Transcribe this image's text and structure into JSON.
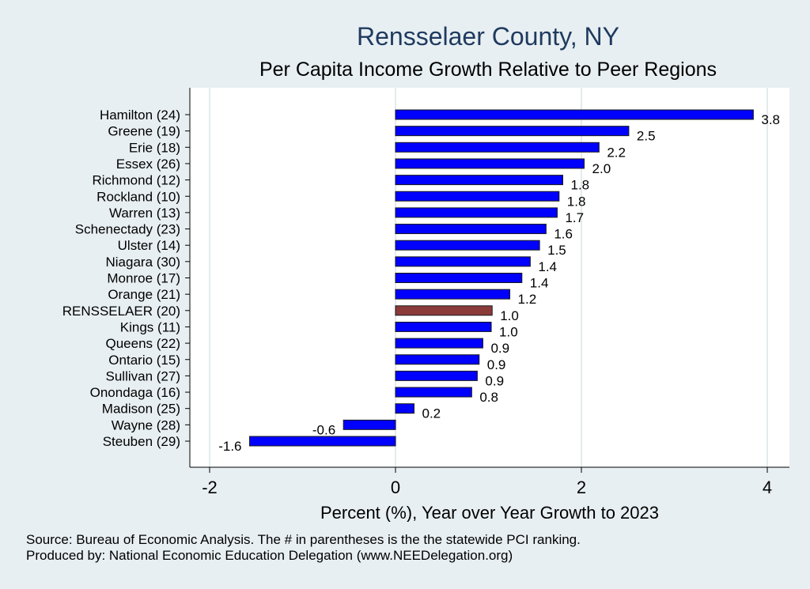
{
  "chart_data": {
    "type": "bar",
    "orientation": "horizontal",
    "title": "Rensselaer County, NY",
    "subtitle": "Per Capita Income Growth Relative to Peer Regions",
    "xlabel": "Percent (%), Year over Year Growth to 2023",
    "ylabel": "",
    "xlim": [
      -2.2,
      4.2
    ],
    "xticks": [
      "-2",
      "0",
      "2",
      "4"
    ],
    "grid": true,
    "categories": [
      "Hamilton (24)",
      "Greene (19)",
      "Erie (18)",
      "Essex (26)",
      "Richmond (12)",
      "Rockland (10)",
      "Warren (13)",
      "Schenectady (23)",
      "Ulster (14)",
      "Niagara (30)",
      "Monroe (17)",
      "Orange (21)",
      "RENSSELAER (20)",
      "Kings (11)",
      "Queens (22)",
      "Ontario (15)",
      "Sullivan (27)",
      "Onondaga (16)",
      "Madison (25)",
      "Wayne (28)",
      "Steuben (29)"
    ],
    "values": [
      3.85,
      2.51,
      2.19,
      2.03,
      1.8,
      1.76,
      1.74,
      1.62,
      1.55,
      1.45,
      1.36,
      1.23,
      1.04,
      1.03,
      0.94,
      0.9,
      0.88,
      0.82,
      0.2,
      -0.56,
      -1.57
    ],
    "value_labels": [
      "3.8",
      "2.5",
      "2.2",
      "2.0",
      "1.8",
      "1.8",
      "1.7",
      "1.6",
      "1.5",
      "1.4",
      "1.4",
      "1.2",
      "1.0",
      "1.0",
      "0.9",
      "0.9",
      "0.9",
      "0.8",
      "0.2",
      "-0.6",
      "-1.6"
    ],
    "highlight_category": "RENSSELAER (20)",
    "colors": {
      "bar": "#0000ff",
      "highlight": "#8b3a3a",
      "plot_background": "#ffffff",
      "page_background": "#e8eff2",
      "grid": "#e3ebee",
      "title": "#1f3a5f"
    }
  },
  "notes": {
    "source": "Source: Bureau of Economic Analysis. The # in parentheses is the the statewide PCI ranking.",
    "producer": "Produced by: National Economic Education Delegation (www.NEEDelegation.org)"
  }
}
